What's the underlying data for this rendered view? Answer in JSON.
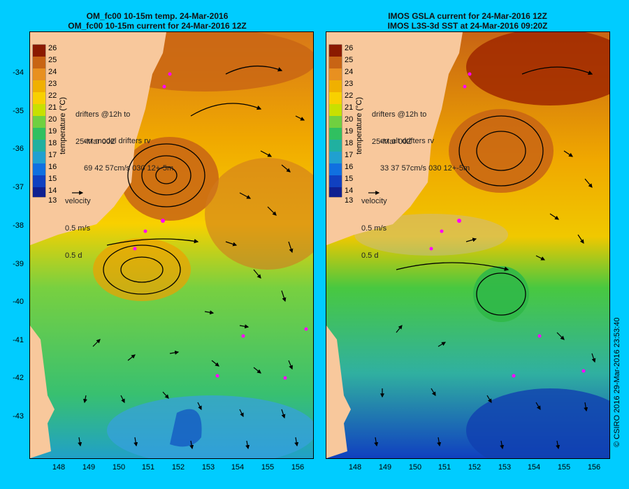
{
  "panels": [
    {
      "id": "left",
      "title_line1": "OM_fc00 10-15m temp. 24-Mar-2016",
      "title_line2": "OM_fc00 10-15m current for 24-Mar-2016 12Z",
      "drifters_line1": "drifters @12h to",
      "drifters_line2": "25-Mar 00Z",
      "err_line1": "err model drifters rv",
      "err_line2": "69 42 57cm/s 030 12+-5m",
      "velocity_label": "velocity",
      "velocity_speed": "0.5 m/s",
      "velocity_time": "0.5 d"
    },
    {
      "id": "right",
      "title_line1": "IMOS GSLA current for 24-Mar-2016 12Z",
      "title_line2": "IMOS L3S-3d SST at 24-Mar-2016 09:20Z",
      "drifters_line1": "drifters @12h to",
      "drifters_line2": "25-Mar 00Z",
      "err_line1": "err alt drifters rv",
      "err_line2": "33 37 57cm/s 030 12+-5m",
      "velocity_label": "velocity",
      "velocity_speed": "0.5 m/s",
      "velocity_time": "0.5 d"
    }
  ],
  "colorbar": {
    "label": "temperature (°C)",
    "ticks": [
      "26",
      "25",
      "24",
      "23",
      "22",
      "21",
      "20",
      "19",
      "18",
      "17",
      "16",
      "15",
      "14",
      "13"
    ]
  },
  "axes": {
    "x_ticks": [
      "148",
      "149",
      "150",
      "151",
      "152",
      "153",
      "154",
      "155",
      "156"
    ],
    "y_ticks": [
      "-34",
      "-35",
      "-36",
      "-37",
      "-38",
      "-39",
      "-40",
      "-41",
      "-42",
      "-43"
    ]
  },
  "credit": "© CSIRO 2016   29-Mar-2016 23:53:40",
  "colors": {
    "background": "#00ccff",
    "land": "#f8c89c",
    "warm": "#c86414",
    "mid": "#f0b000",
    "cool": "#40c840",
    "cold": "#1060d0",
    "drifter": "#ff00ff"
  }
}
